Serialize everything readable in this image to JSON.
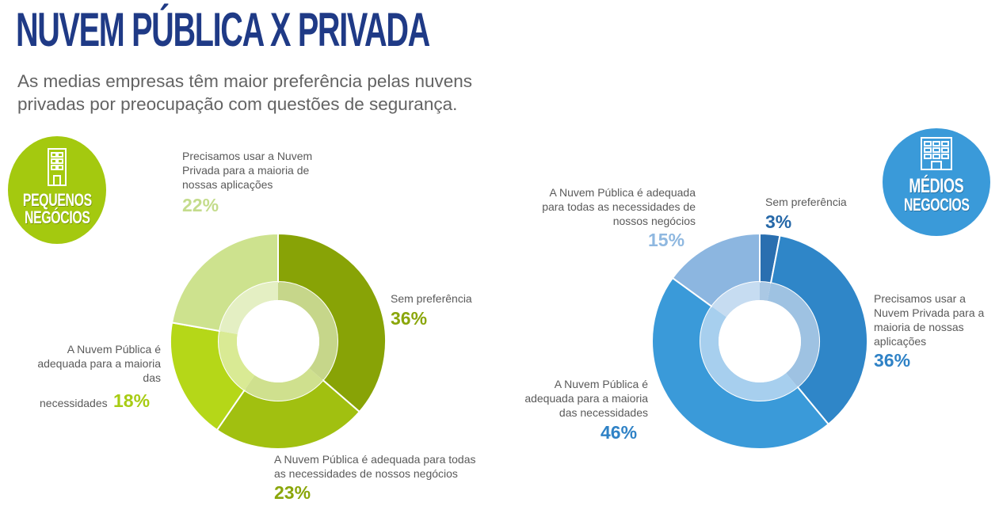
{
  "title": "NUVEM PÚBLICA X PRIVADA",
  "subtitle": "As medias empresas têm maior preferência pelas nuvens privadas por preocupação com questões de segurança.",
  "badges": {
    "small": {
      "line1": "PEQUENOS",
      "line2": "NEGÓCIOS",
      "icon": "building-icon",
      "color": "#a4c90f"
    },
    "mid": {
      "line1": "MÉDIOS",
      "line2": "NEGOCIOS",
      "icon": "office-building-icon",
      "color": "#3a9ad9"
    }
  },
  "chart_data": [
    {
      "type": "pie",
      "group": "PEQUENOS NEGÓCIOS",
      "donut": true,
      "slices": [
        {
          "label": "Sem preferência",
          "value": 36,
          "pct_text": "36%",
          "color": "#88a306",
          "inner_color": "#c6d68a"
        },
        {
          "label": "A Nuvem Pública é adequada para todas as necessidades de nossos negócios",
          "value": 23,
          "pct_text": "23%",
          "color": "#a1c010",
          "inner_color": "#cfe08e"
        },
        {
          "label": "A Nuvem Pública é adequada para a maioria das necessidades",
          "value": 18,
          "pct_text": "18%",
          "color": "#b5d718",
          "inner_color": "#d9ea94"
        },
        {
          "label": "Precisamos usar a Nuvem Privada para a maioria de nossas aplicações",
          "value": 22,
          "pct_text": "22%",
          "color": "#cde28e",
          "inner_color": "#e4efc3"
        }
      ],
      "label_lines": {
        "sem": [
          "Sem preferência"
        ],
        "todas": [
          "A Nuvem Pública é adequada para todas",
          "as necessidades de nossos negócios"
        ],
        "maioria": [
          "A Nuvem Pública é",
          "adequada para a maioria",
          "das",
          "necessidades"
        ],
        "privada": [
          "Precisamos usar a Nuvem",
          "Privada para a maioria de",
          "nossas aplicações"
        ]
      }
    },
    {
      "type": "pie",
      "group": "MÉDIOS NEGOCIOS",
      "donut": true,
      "slices": [
        {
          "label": "Sem preferência",
          "value": 3,
          "pct_text": "3%",
          "color": "#2a6fb0",
          "inner_color": "#aac8e4"
        },
        {
          "label": "Precisamos usar a Nuvem Privada para a maioria de nossas aplicações",
          "value": 36,
          "pct_text": "36%",
          "color": "#2f86c8",
          "inner_color": "#9ec2e2"
        },
        {
          "label": "A Nuvem Pública é adequada para a maioria das necessidades",
          "value": 46,
          "pct_text": "46%",
          "color": "#3a9ad9",
          "inner_color": "#a7cfee"
        },
        {
          "label": "A Nuvem Pública é adequada para todas as necessidades de nossos negócios",
          "value": 15,
          "pct_text": "15%",
          "color": "#8cb6e0",
          "inner_color": "#c6dcf1"
        }
      ],
      "label_lines": {
        "sem": [
          "Sem preferência"
        ],
        "privada": [
          "Precisamos usar a",
          "Nuvem Privada para a",
          "maioria de nossas",
          "aplicações"
        ],
        "maioria": [
          "A Nuvem Pública é",
          "adequada para a maioria",
          "das necessidades"
        ],
        "todas": [
          "A Nuvem Pública é adequada",
          "para todas as necessidades de",
          "nossos negócios"
        ]
      }
    }
  ]
}
